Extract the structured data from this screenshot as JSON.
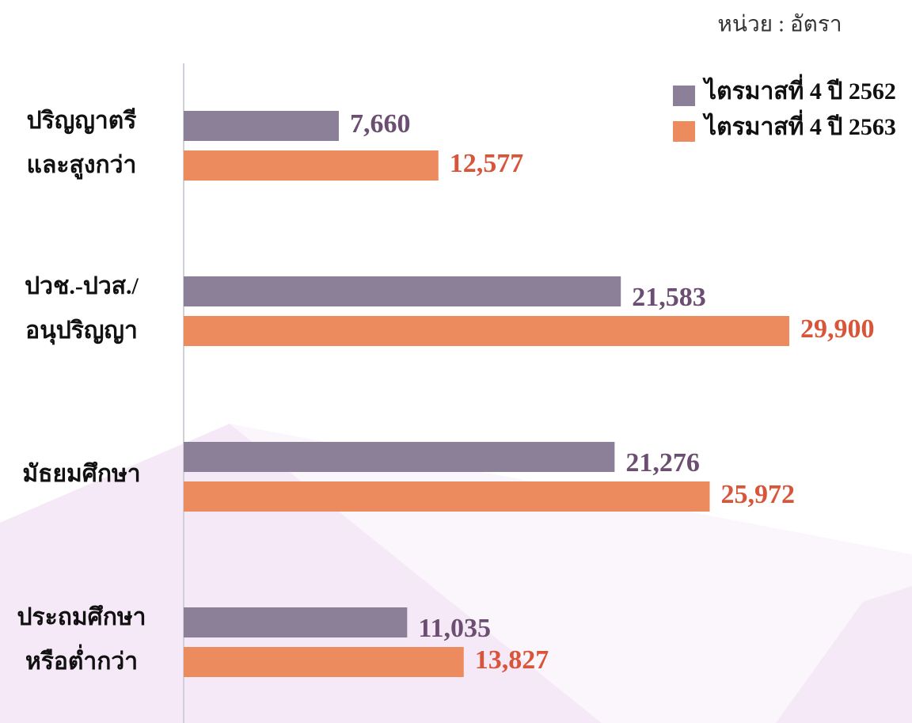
{
  "chart_data": {
    "type": "bar",
    "orientation": "horizontal",
    "unit_label": "หน่วย : อัตรา",
    "categories": [
      [
        "ปริญญาตรี",
        "และสูงกว่า"
      ],
      [
        "ปวช.-ปวส./",
        "อนุปริญญา"
      ],
      [
        "มัธยมศึกษา"
      ],
      [
        "ประถมศึกษา",
        "หรือต่ำกว่า"
      ]
    ],
    "series": [
      {
        "name": "ไตรมาสที่ 4 ปี 2562",
        "color": "#8b8098",
        "label_color": "#6b4e71",
        "values": [
          7660,
          21583,
          21276,
          11035
        ],
        "value_labels": [
          "7,660",
          "21,583",
          "21,276",
          "11,035"
        ]
      },
      {
        "name": "ไตรมาสที่ 4 ปี 2563",
        "color": "#ec8b5e",
        "label_color": "#d9553a",
        "values": [
          12577,
          29900,
          25972,
          13827
        ],
        "value_labels": [
          "12,577",
          "29,900",
          "25,972",
          "13,827"
        ]
      }
    ],
    "legend": "top-right"
  }
}
